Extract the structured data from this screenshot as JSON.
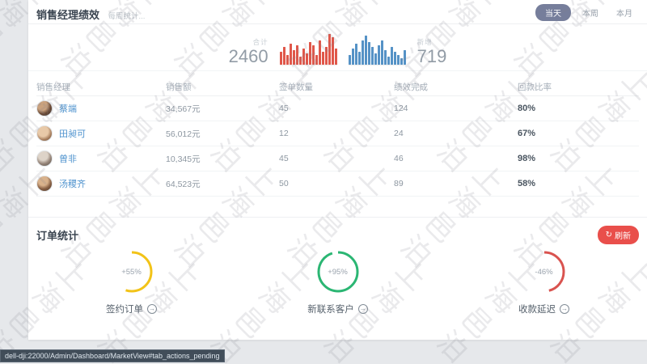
{
  "watermark": {
    "text": "上海邑泊"
  },
  "header": {
    "title": "销售经理绩效",
    "subtitle": "每周统计...",
    "filters": [
      {
        "label": "当天",
        "active": true
      },
      {
        "label": "本周",
        "active": false
      },
      {
        "label": "本月",
        "active": false
      }
    ]
  },
  "summary": {
    "left": {
      "label": "合计",
      "value": "2460"
    },
    "right": {
      "label": "新增",
      "value": "719"
    }
  },
  "chart_data": [
    {
      "type": "bar",
      "name": "total-sparkline",
      "color": "#e0574a",
      "values": [
        16,
        22,
        12,
        26,
        18,
        24,
        10,
        20,
        14,
        28,
        24,
        12,
        30,
        16,
        22,
        38,
        34,
        20
      ],
      "total_label": "合计",
      "total": 2460
    },
    {
      "type": "bar",
      "name": "new-sparkline",
      "color": "#5592c6",
      "values": [
        12,
        20,
        26,
        16,
        30,
        36,
        28,
        22,
        14,
        24,
        30,
        18,
        10,
        22,
        16,
        12,
        8,
        18
      ],
      "total_label": "新增",
      "total": 719
    },
    {
      "type": "donut",
      "label": "签约订单",
      "value": "+55%",
      "percent": 55,
      "color": "#f2c318"
    },
    {
      "type": "donut",
      "label": "新联系客户",
      "value": "+95%",
      "percent": 95,
      "color": "#2bb673"
    },
    {
      "type": "donut",
      "label": "收款延迟",
      "value": "-46%",
      "percent": 46,
      "color": "#d9534f"
    }
  ],
  "table": {
    "headers": [
      "销售经理",
      "销售额",
      "签单数量",
      "绩效完成",
      "回款比率"
    ],
    "rows": [
      {
        "name": "蔡端",
        "sales": "34,567元",
        "orders": "45",
        "done": "124",
        "rate": "80%"
      },
      {
        "name": "田昶可",
        "sales": "56,012元",
        "orders": "12",
        "done": "24",
        "rate": "67%"
      },
      {
        "name": "曾非",
        "sales": "10,345元",
        "orders": "45",
        "done": "46",
        "rate": "98%"
      },
      {
        "name": "汤稷齐",
        "sales": "64,523元",
        "orders": "50",
        "done": "89",
        "rate": "58%"
      }
    ]
  },
  "orders": {
    "title": "订单统计",
    "refresh_label": "刷新",
    "refresh_icon": "↻",
    "gauges": [
      {
        "value": "+55%",
        "percent": 55,
        "color": "#f2c318",
        "label": "签约订单"
      },
      {
        "value": "+95%",
        "percent": 95,
        "color": "#2bb673",
        "label": "新联系客户"
      },
      {
        "value": "-46%",
        "percent": 46,
        "color": "#d9534f",
        "label": "收款延迟"
      }
    ],
    "arrow_icon": "→"
  },
  "statusbar": {
    "url": "dell-dji:22000/Admin/Dashboard/MarketView#tab_actions_pending"
  }
}
